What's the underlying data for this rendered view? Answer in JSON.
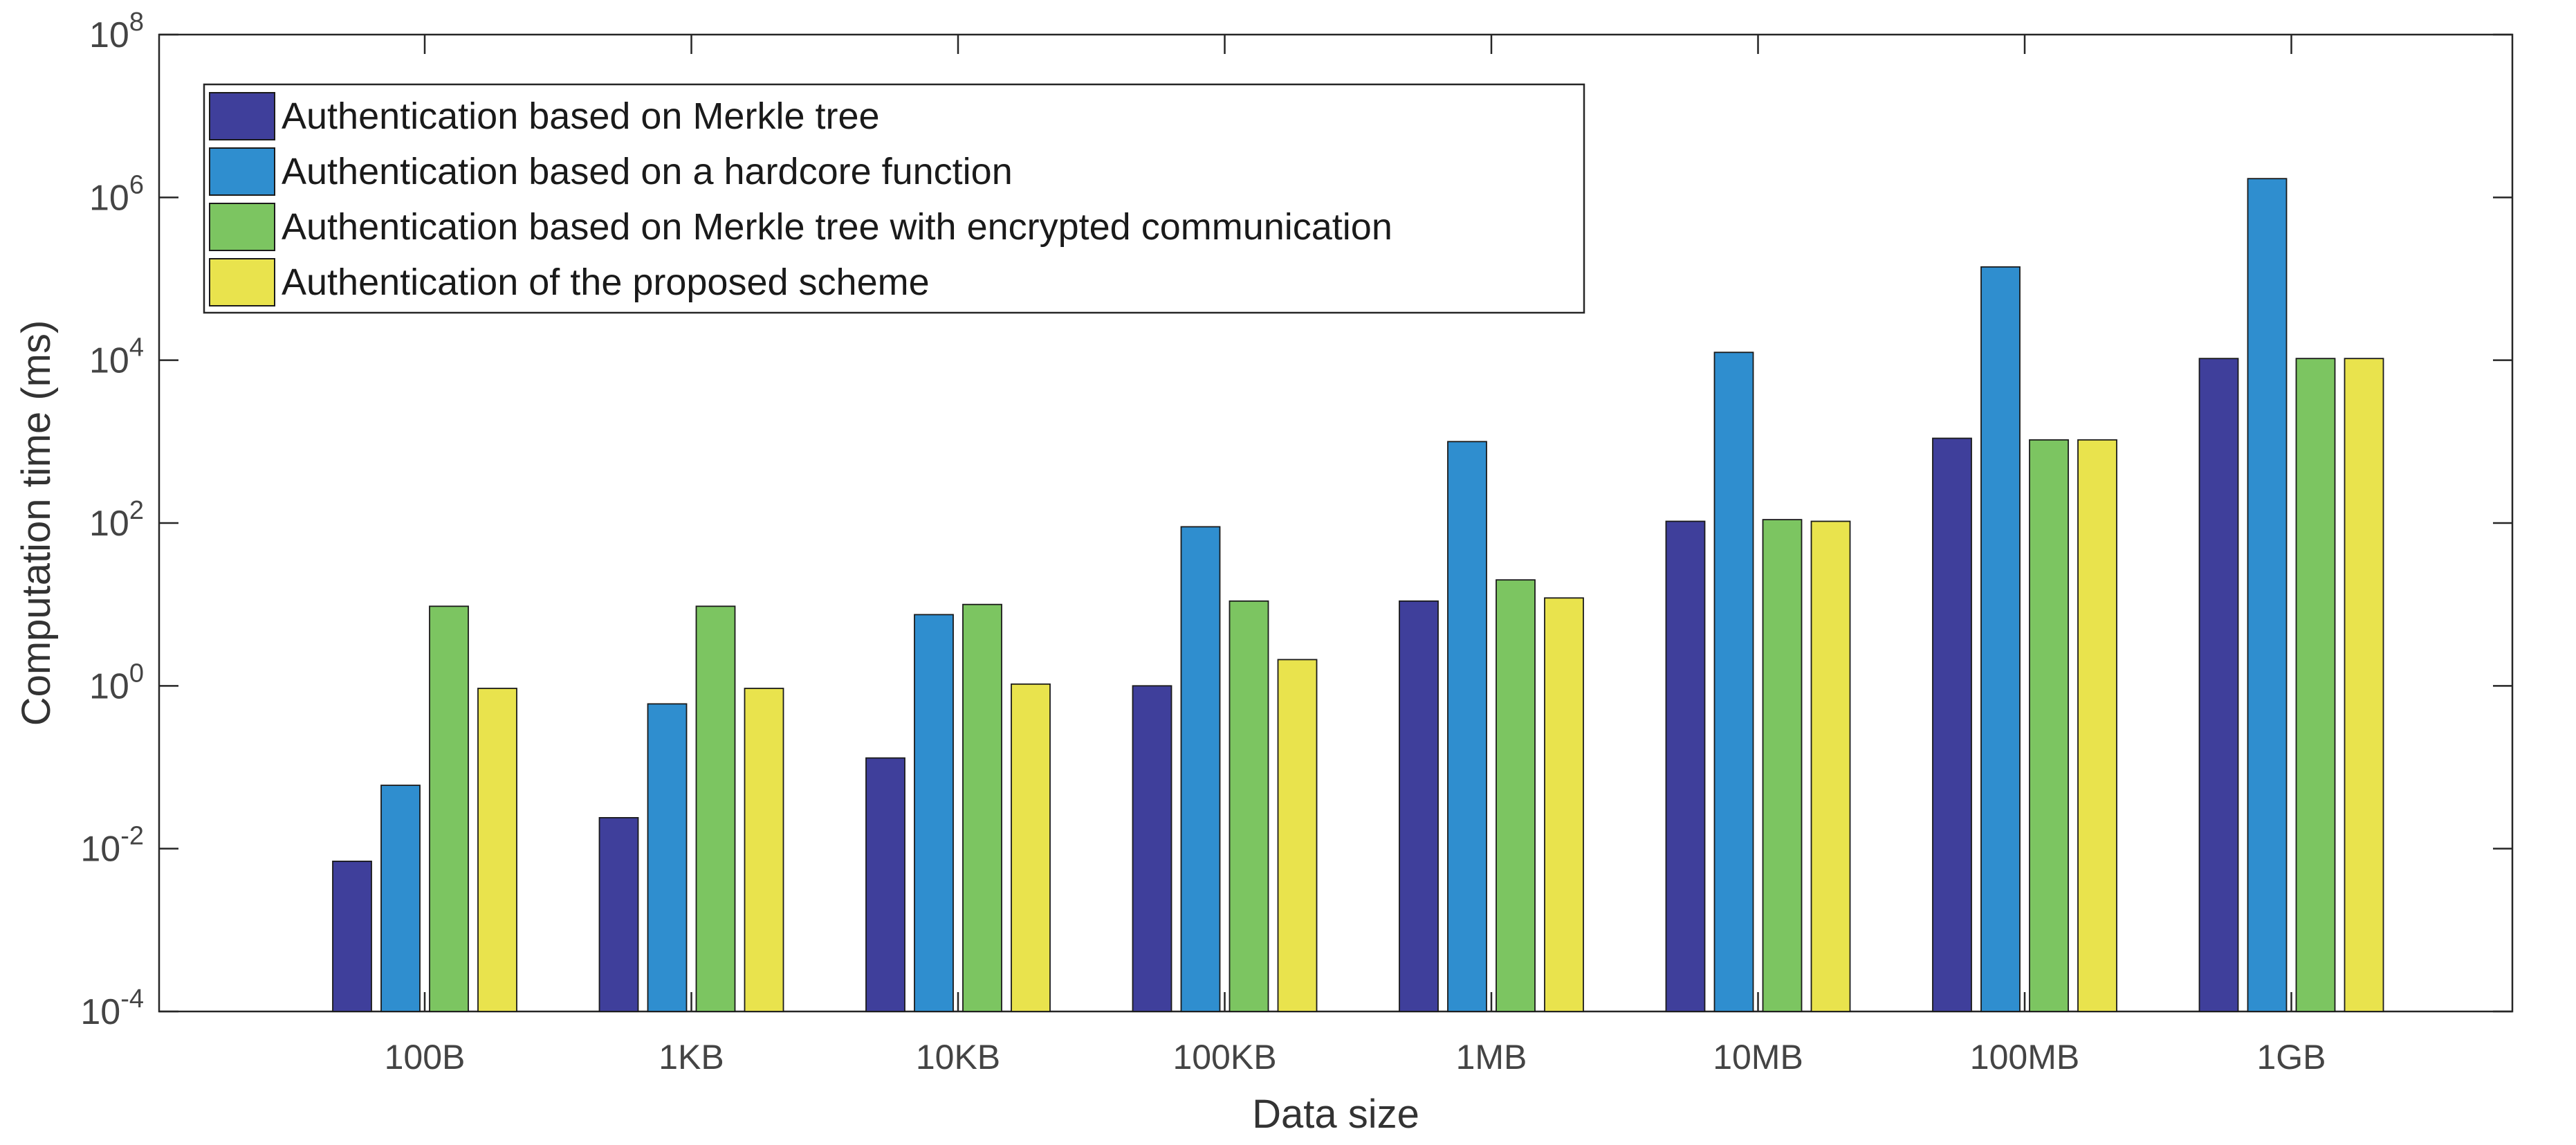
{
  "chart_data": {
    "type": "bar",
    "xlabel": "Data size",
    "ylabel": "Computation time (ms)",
    "yscale": "log",
    "ylim": [
      0.0001,
      100000000
    ],
    "yticks": [
      {
        "base": "10",
        "exp": "-4"
      },
      {
        "base": "10",
        "exp": "-2"
      },
      {
        "base": "10",
        "exp": "0"
      },
      {
        "base": "10",
        "exp": "2"
      },
      {
        "base": "10",
        "exp": "4"
      },
      {
        "base": "10",
        "exp": "6"
      },
      {
        "base": "10",
        "exp": "8"
      }
    ],
    "categories": [
      "100B",
      "1KB",
      "10KB",
      "100KB",
      "1MB",
      "10MB",
      "100MB",
      "1GB"
    ],
    "legend_position": "top-left",
    "grid": false,
    "series": [
      {
        "name": "Authentication based on Merkle tree",
        "color": "#3f3f9b",
        "values": [
          0.007,
          0.024,
          0.13,
          1.0,
          11,
          105,
          1100,
          10500
        ]
      },
      {
        "name": "Authentication based on a hardcore function",
        "color": "#2f8ecf",
        "values": [
          0.06,
          0.6,
          7.5,
          90,
          1000,
          12500,
          140000,
          1700000
        ]
      },
      {
        "name": "Authentication based on Merkle tree with encrypted communication",
        "color": "#7cc561",
        "values": [
          9.5,
          9.5,
          10,
          11,
          20,
          110,
          1050,
          10500
        ]
      },
      {
        "name": "Authentication of the proposed scheme",
        "color": "#e9e34d",
        "values": [
          0.93,
          0.93,
          1.05,
          2.1,
          12,
          105,
          1050,
          10500
        ]
      }
    ]
  }
}
